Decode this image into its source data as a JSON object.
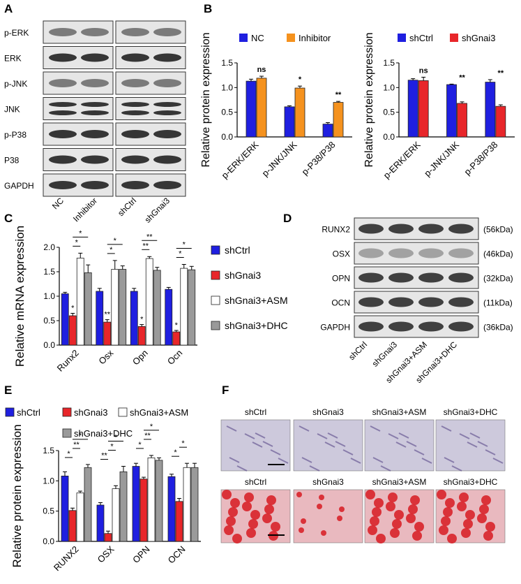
{
  "colors": {
    "blue": "#1f1fe0",
    "orange": "#f5921e",
    "red": "#e8262a",
    "white": "#ffffff",
    "gray": "#9a9a9a",
    "blot_bg": "#e6e6e6",
    "band": "#222222",
    "stain_purple": "#cdc9dc",
    "stain_red": "#d8232a"
  },
  "panel_labels": [
    "A",
    "B",
    "C",
    "D",
    "E",
    "F"
  ],
  "panel_a": {
    "rows": [
      "p-ERK",
      "ERK",
      "p-JNK",
      "JNK",
      "p-P38",
      "P38",
      "GAPDH"
    ],
    "lanes": [
      "NC",
      "Inhibitor",
      "shCtrl",
      "shGnai3"
    ]
  },
  "panel_d": {
    "rows": [
      "RUNX2",
      "OSX",
      "OPN",
      "OCN",
      "GAPDH"
    ],
    "sizes": [
      "(56kDa)",
      "(46kDa)",
      "(32kDa)",
      "(11kDa)",
      "(36kDa)"
    ],
    "lanes": [
      "shCtrl",
      "shGnai3",
      "shGnai3+ASM",
      "shGnai3+DHC"
    ]
  },
  "panel_f": {
    "titles_top": [
      "shCtrl",
      "shGnai3",
      "shGnai3+ASM",
      "shGnai3+DHC"
    ],
    "titles_bottom": [
      "shCtrl",
      "shGnai3",
      "shGnai3+ASM",
      "shGnai3+DHC"
    ]
  },
  "chart_data": [
    {
      "id": "B1",
      "type": "bar",
      "ylabel": "Relative protein expression",
      "ylim": [
        0,
        1.5
      ],
      "yticks": [
        "0.0",
        "0.5",
        "1.0",
        "1.5"
      ],
      "categories": [
        "p-ERK/ERK",
        "p-JNK/JNK",
        "p-P38/P38"
      ],
      "series": [
        {
          "name": "NC",
          "color": "#1f1fe0",
          "values": [
            1.13,
            0.61,
            0.26
          ],
          "errors": [
            0.04,
            0.02,
            0.03
          ]
        },
        {
          "name": "Inhibitor",
          "color": "#f5921e",
          "values": [
            1.19,
            0.99,
            0.7
          ],
          "errors": [
            0.04,
            0.04,
            0.02
          ]
        }
      ],
      "sig": [
        "ns",
        "*",
        "**"
      ]
    },
    {
      "id": "B2",
      "type": "bar",
      "ylabel": "Relative protein expression",
      "ylim": [
        0,
        1.5
      ],
      "yticks": [
        "0.0",
        "0.5",
        "1.0",
        "1.5"
      ],
      "categories": [
        "p-ERK/ERK",
        "p-JNK/JNK",
        "p-P38/P38"
      ],
      "series": [
        {
          "name": "shCtrl",
          "color": "#1f1fe0",
          "values": [
            1.15,
            1.06,
            1.11
          ],
          "errors": [
            0.03,
            0.01,
            0.05
          ]
        },
        {
          "name": "shGnai3",
          "color": "#e8262a",
          "values": [
            1.14,
            0.68,
            0.62
          ],
          "errors": [
            0.07,
            0.03,
            0.03
          ]
        }
      ],
      "sig": [
        "ns",
        "**",
        "**"
      ]
    },
    {
      "id": "C",
      "type": "bar",
      "ylabel": "Relative mRNA expression",
      "ylim": [
        0,
        2.0
      ],
      "yticks": [
        "0.0",
        "0.5",
        "1.0",
        "1.5",
        "2.0"
      ],
      "categories": [
        "Runx2",
        "Osx",
        "Opn",
        "Ocn"
      ],
      "series": [
        {
          "name": "shCtrl",
          "color": "#1f1fe0",
          "values": [
            1.05,
            1.1,
            1.1,
            1.14
          ],
          "errors": [
            0.03,
            0.06,
            0.06,
            0.04
          ]
        },
        {
          "name": "shGnai3",
          "color": "#e8262a",
          "values": [
            0.6,
            0.47,
            0.38,
            0.27
          ],
          "errors": [
            0.05,
            0.05,
            0.04,
            0.03
          ]
        },
        {
          "name": "shGnai3+ASM",
          "color": "#ffffff",
          "values": [
            1.78,
            1.55,
            1.77,
            1.57
          ],
          "errors": [
            0.1,
            0.18,
            0.04,
            0.08
          ]
        },
        {
          "name": "shGnai3+DHC",
          "color": "#9a9a9a",
          "values": [
            1.48,
            1.55,
            1.53,
            1.54
          ],
          "errors": [
            0.16,
            0.07,
            0.06,
            0.07
          ]
        }
      ],
      "sig_below": [
        "*",
        "**",
        "*",
        "*"
      ],
      "sig_brackets": [
        "*",
        "*",
        "*",
        "*",
        "**",
        "**",
        "*",
        "*"
      ]
    },
    {
      "id": "E",
      "type": "bar",
      "ylabel": "Relative protein expression",
      "ylim": [
        0,
        1.5
      ],
      "yticks": [
        "0.0",
        "0.5",
        "1.0",
        "1.5"
      ],
      "categories": [
        "RUNX2",
        "OSX",
        "OPN",
        "OCN"
      ],
      "series": [
        {
          "name": "shCtrl",
          "color": "#1f1fe0",
          "values": [
            1.08,
            0.6,
            1.24,
            1.07
          ],
          "errors": [
            0.07,
            0.04,
            0.05,
            0.04
          ]
        },
        {
          "name": "shGnai3",
          "color": "#e8262a",
          "values": [
            0.51,
            0.13,
            1.03,
            0.66
          ],
          "errors": [
            0.04,
            0.04,
            0.03,
            0.05
          ]
        },
        {
          "name": "shGnai3+ASM",
          "color": "#ffffff",
          "values": [
            0.8,
            0.87,
            1.38,
            1.22
          ],
          "errors": [
            0.03,
            0.05,
            0.04,
            0.07
          ]
        },
        {
          "name": "shGnai3+DHC",
          "color": "#9a9a9a",
          "values": [
            1.22,
            1.15,
            1.34,
            1.22
          ],
          "errors": [
            0.05,
            0.09,
            0.04,
            0.07
          ]
        }
      ],
      "sig_brackets": [
        "*",
        "**",
        "*",
        "**",
        "*",
        "*",
        "*",
        "**",
        "*",
        "*",
        "*"
      ]
    }
  ]
}
